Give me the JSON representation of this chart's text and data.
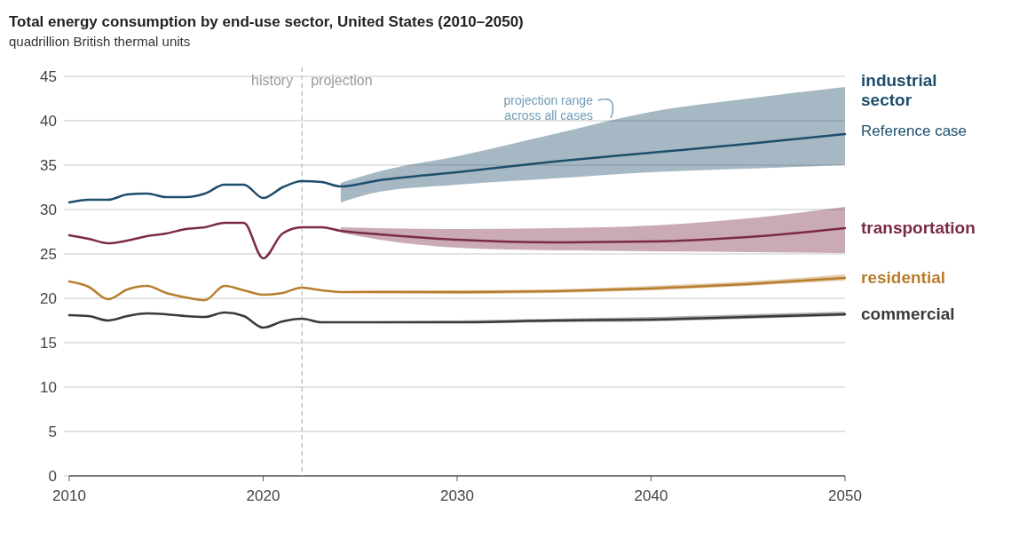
{
  "chart_data": {
    "type": "line",
    "title": "Total energy consumption by end-use sector, United States (2010–2050)",
    "subtitle": "quadrillion British thermal units",
    "xlim": [
      2010,
      2050
    ],
    "xticks": [
      2010,
      2020,
      2030,
      2040,
      2050
    ],
    "ylim": [
      0,
      45
    ],
    "yticks": [
      0,
      5,
      10,
      15,
      20,
      25,
      30,
      35,
      40,
      45
    ],
    "grid": "y",
    "x": [
      2010,
      2011,
      2012,
      2013,
      2014,
      2015,
      2016,
      2017,
      2018,
      2019,
      2020,
      2021,
      2022,
      2023,
      2024,
      2026,
      2030,
      2035,
      2040,
      2045,
      2050
    ],
    "series": [
      {
        "name": "industrial sector",
        "color": "#1d4e6b",
        "values": [
          30.8,
          31.1,
          31.1,
          31.7,
          31.8,
          31.4,
          31.4,
          31.8,
          32.8,
          32.8,
          31.3,
          32.5,
          33.2,
          33.1,
          32.6,
          33.3,
          34.2,
          35.4,
          36.4,
          37.4,
          38.5
        ],
        "lower": [
          null,
          null,
          null,
          null,
          null,
          null,
          null,
          null,
          null,
          null,
          null,
          null,
          null,
          null,
          30.8,
          32.0,
          32.8,
          33.5,
          34.2,
          34.6,
          35.0
        ],
        "upper": [
          null,
          null,
          null,
          null,
          null,
          null,
          null,
          null,
          null,
          null,
          null,
          null,
          null,
          null,
          33.0,
          34.3,
          36.0,
          38.5,
          41.0,
          42.5,
          43.8
        ]
      },
      {
        "name": "transportation",
        "color": "#7a2b45",
        "values": [
          27.1,
          26.7,
          26.2,
          26.5,
          27.0,
          27.3,
          27.8,
          28.0,
          28.5,
          28.5,
          24.5,
          27.3,
          28.0,
          28.0,
          27.6,
          27.2,
          26.6,
          26.3,
          26.4,
          26.9,
          27.9
        ],
        "lower": [
          null,
          null,
          null,
          null,
          null,
          null,
          null,
          null,
          null,
          null,
          null,
          null,
          null,
          null,
          27.4,
          26.6,
          25.7,
          25.4,
          25.3,
          25.2,
          25.1
        ],
        "upper": [
          null,
          null,
          null,
          null,
          null,
          null,
          null,
          null,
          null,
          null,
          null,
          null,
          null,
          null,
          28.0,
          27.9,
          27.8,
          27.9,
          28.2,
          29.0,
          30.3
        ]
      },
      {
        "name": "residential",
        "color": "#b87d2d",
        "values": [
          21.9,
          21.3,
          19.9,
          21.0,
          21.4,
          20.6,
          20.1,
          19.8,
          21.4,
          20.9,
          20.4,
          20.6,
          21.2,
          20.9,
          20.7,
          20.7,
          20.7,
          20.8,
          21.1,
          21.6,
          22.3
        ],
        "lower": [
          null,
          null,
          null,
          null,
          null,
          null,
          null,
          null,
          null,
          null,
          null,
          null,
          null,
          null,
          20.6,
          20.6,
          20.5,
          20.6,
          20.9,
          21.4,
          22.0
        ],
        "upper": [
          null,
          null,
          null,
          null,
          null,
          null,
          null,
          null,
          null,
          null,
          null,
          null,
          null,
          null,
          20.8,
          20.9,
          20.9,
          21.0,
          21.4,
          21.9,
          22.7
        ]
      },
      {
        "name": "commercial",
        "color": "#3a3a3a",
        "values": [
          18.1,
          18.0,
          17.5,
          18.0,
          18.3,
          18.2,
          18.0,
          17.9,
          18.4,
          18.0,
          16.7,
          17.4,
          17.7,
          17.3,
          17.3,
          17.3,
          17.3,
          17.5,
          17.6,
          17.9,
          18.2
        ],
        "lower": [
          null,
          null,
          null,
          null,
          null,
          null,
          null,
          null,
          null,
          null,
          null,
          null,
          null,
          null,
          17.2,
          17.2,
          17.2,
          17.3,
          17.4,
          17.7,
          18.0
        ],
        "upper": [
          null,
          null,
          null,
          null,
          null,
          null,
          null,
          null,
          null,
          null,
          null,
          null,
          null,
          null,
          17.4,
          17.4,
          17.5,
          17.7,
          17.9,
          18.2,
          18.5
        ]
      }
    ],
    "ref_lines": [
      {
        "axis": "x",
        "value": 2022,
        "color": "#bbbbbb",
        "line_style": "dashed"
      }
    ],
    "annotations": [
      "Reference case",
      "history",
      "projection",
      "projection range across all cases"
    ]
  }
}
